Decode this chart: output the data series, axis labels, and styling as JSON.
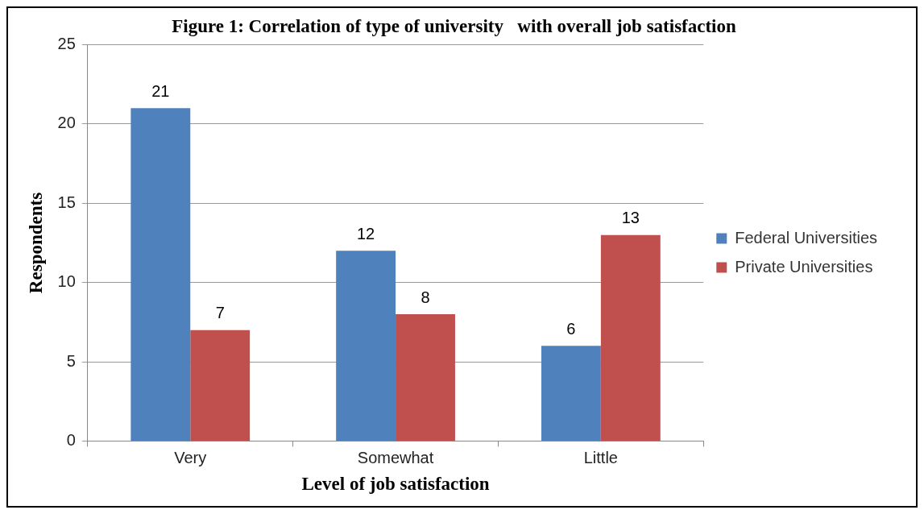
{
  "chart_data": {
    "type": "bar",
    "title": "Figure 1: Correlation of type of university   with overall job satisfaction",
    "xlabel": "Level of job satisfaction",
    "ylabel": "Respondents",
    "categories": [
      "Very",
      "Somewhat",
      "Little"
    ],
    "series": [
      {
        "name": "Federal Universities",
        "color": "#4f81bd",
        "values": [
          21,
          12,
          6
        ]
      },
      {
        "name": "Private Universities",
        "color": "#c0504d",
        "values": [
          7,
          8,
          13
        ]
      }
    ],
    "ylim": [
      0,
      25
    ],
    "yticks": [
      0,
      5,
      10,
      15,
      20,
      25
    ],
    "grid": "y",
    "legend": "right",
    "data_labels": true
  }
}
